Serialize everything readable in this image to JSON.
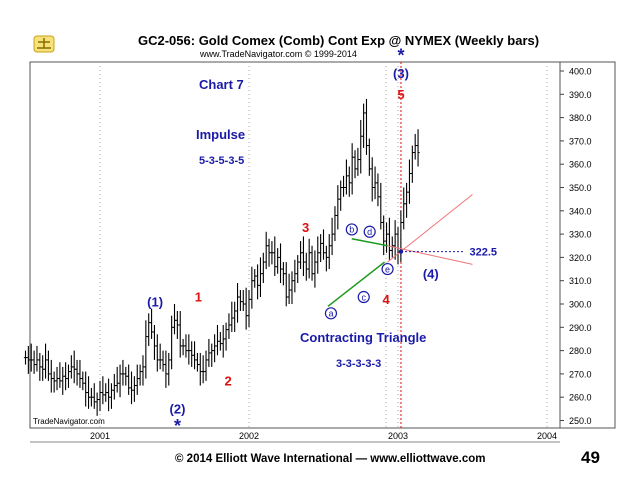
{
  "header": {
    "title": "GC2-056:  Gold Comex (Comb) Cont Exp @ NYMEX  (Weekly bars)",
    "subtitle": "www.TradeNavigator.com © 1999-2014"
  },
  "footer": {
    "copyright": "© 2014 Elliott Wave International — www.elliottwave.com",
    "page_number": "49"
  },
  "colors": {
    "blue": "#1a1aa8",
    "red": "#dd1111",
    "green": "#1a9a1a",
    "bar": "#000000"
  },
  "chart_data": {
    "type": "ohlc",
    "ylim": [
      245,
      405
    ],
    "yticks": [
      "400.0",
      "390.0",
      "380.0",
      "370.0",
      "360.0",
      "350.0",
      "340.0",
      "330.0",
      "320.0",
      "310.0",
      "300.0",
      "290.0",
      "280.0",
      "270.0",
      "260.0",
      "250.0"
    ],
    "xlabels": [
      "2001",
      "2002",
      "2003",
      "2004"
    ],
    "watermark": "TradeNavigator.com",
    "level_label": "322.5",
    "annotations": {
      "chart_label": "Chart 7",
      "impulse": "Impulse",
      "impulse_pattern": "5-3-5-3-5",
      "triangle": "Contracting Triangle",
      "triangle_pattern": "3-3-3-3-3",
      "wave_labels": [
        {
          "text": "(1)",
          "color": "blue",
          "date": 2001.37,
          "price": 299
        },
        {
          "text": "(2)",
          "color": "blue",
          "date": 2001.52,
          "price": 253
        },
        {
          "text": "*",
          "color": "blue",
          "date": 2001.52,
          "price": 245
        },
        {
          "text": "1",
          "color": "red",
          "date": 2001.66,
          "price": 301
        },
        {
          "text": "2",
          "color": "red",
          "date": 2001.86,
          "price": 265
        },
        {
          "text": "3",
          "color": "red",
          "date": 2002.38,
          "price": 331
        },
        {
          "text": "4",
          "color": "red",
          "date": 2002.92,
          "price": 300
        },
        {
          "text": "5",
          "color": "red",
          "date": 2003.02,
          "price": 388
        },
        {
          "text": "(3)",
          "color": "blue",
          "date": 2003.02,
          "price": 397
        },
        {
          "text": "*",
          "color": "blue",
          "date": 2003.02,
          "price": 404
        },
        {
          "text": "(4)",
          "color": "blue",
          "date": 2003.22,
          "price": 311
        }
      ],
      "circle_labels": [
        {
          "text": "a",
          "date": 2002.55,
          "price": 296
        },
        {
          "text": "b",
          "date": 2002.69,
          "price": 332
        },
        {
          "text": "c",
          "date": 2002.77,
          "price": 303
        },
        {
          "text": "d",
          "date": 2002.81,
          "price": 331
        },
        {
          "text": "e",
          "date": 2002.93,
          "price": 315
        }
      ]
    },
    "series": [
      {
        "name": "Gold Comex (Comb) Cont Exp",
        "start_date": 2000.5,
        "interval": "weekly",
        "close": [
          277,
          276,
          276,
          274,
          276,
          273,
          272,
          276,
          270,
          268,
          267,
          268,
          267,
          269,
          268,
          271,
          273,
          272,
          270,
          268,
          266,
          262,
          260,
          260,
          258,
          259,
          262,
          261,
          262,
          260,
          263,
          265,
          266,
          270,
          270,
          269,
          264,
          263,
          265,
          268,
          271,
          273,
          286,
          292,
          288,
          282,
          276,
          276,
          274,
          270,
          276,
          290,
          293,
          291,
          282,
          282,
          280,
          280,
          278,
          276,
          274,
          271,
          271,
          276,
          279,
          280,
          282,
          284,
          283,
          285,
          289,
          291,
          294,
          297,
          303,
          301,
          300,
          295,
          302,
          310,
          312,
          308,
          313,
          318,
          325,
          322,
          322,
          316,
          320,
          315,
          313,
          303,
          306,
          310,
          313,
          318,
          322,
          318,
          315,
          322,
          313,
          318,
          322,
          326,
          322,
          320,
          325,
          330,
          338,
          345,
          350,
          350,
          355,
          352,
          363,
          358,
          362,
          372,
          382,
          368,
          358,
          350,
          352,
          346,
          335,
          327,
          330,
          323,
          325,
          330,
          322,
          335,
          343,
          348,
          356,
          365,
          368,
          365
        ]
      }
    ]
  }
}
